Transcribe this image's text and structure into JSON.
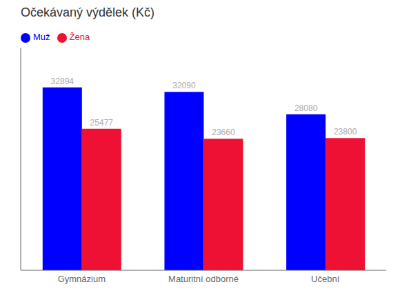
{
  "chart_data": {
    "type": "bar",
    "title": "Očekávaný výdělek (Kč)",
    "categories": [
      "Gymnázium",
      "Maturitní odborné",
      "Učební"
    ],
    "series": [
      {
        "name": "Muž",
        "color": "#0000ff",
        "values": [
          32894,
          32090,
          28080
        ]
      },
      {
        "name": "Žena",
        "color": "#ee1133",
        "values": [
          25477,
          23660,
          23800
        ]
      }
    ],
    "ylim": [
      0,
      40000
    ],
    "grid": false,
    "legend": "upper left",
    "data_labels": true,
    "tick_labels": "x"
  }
}
